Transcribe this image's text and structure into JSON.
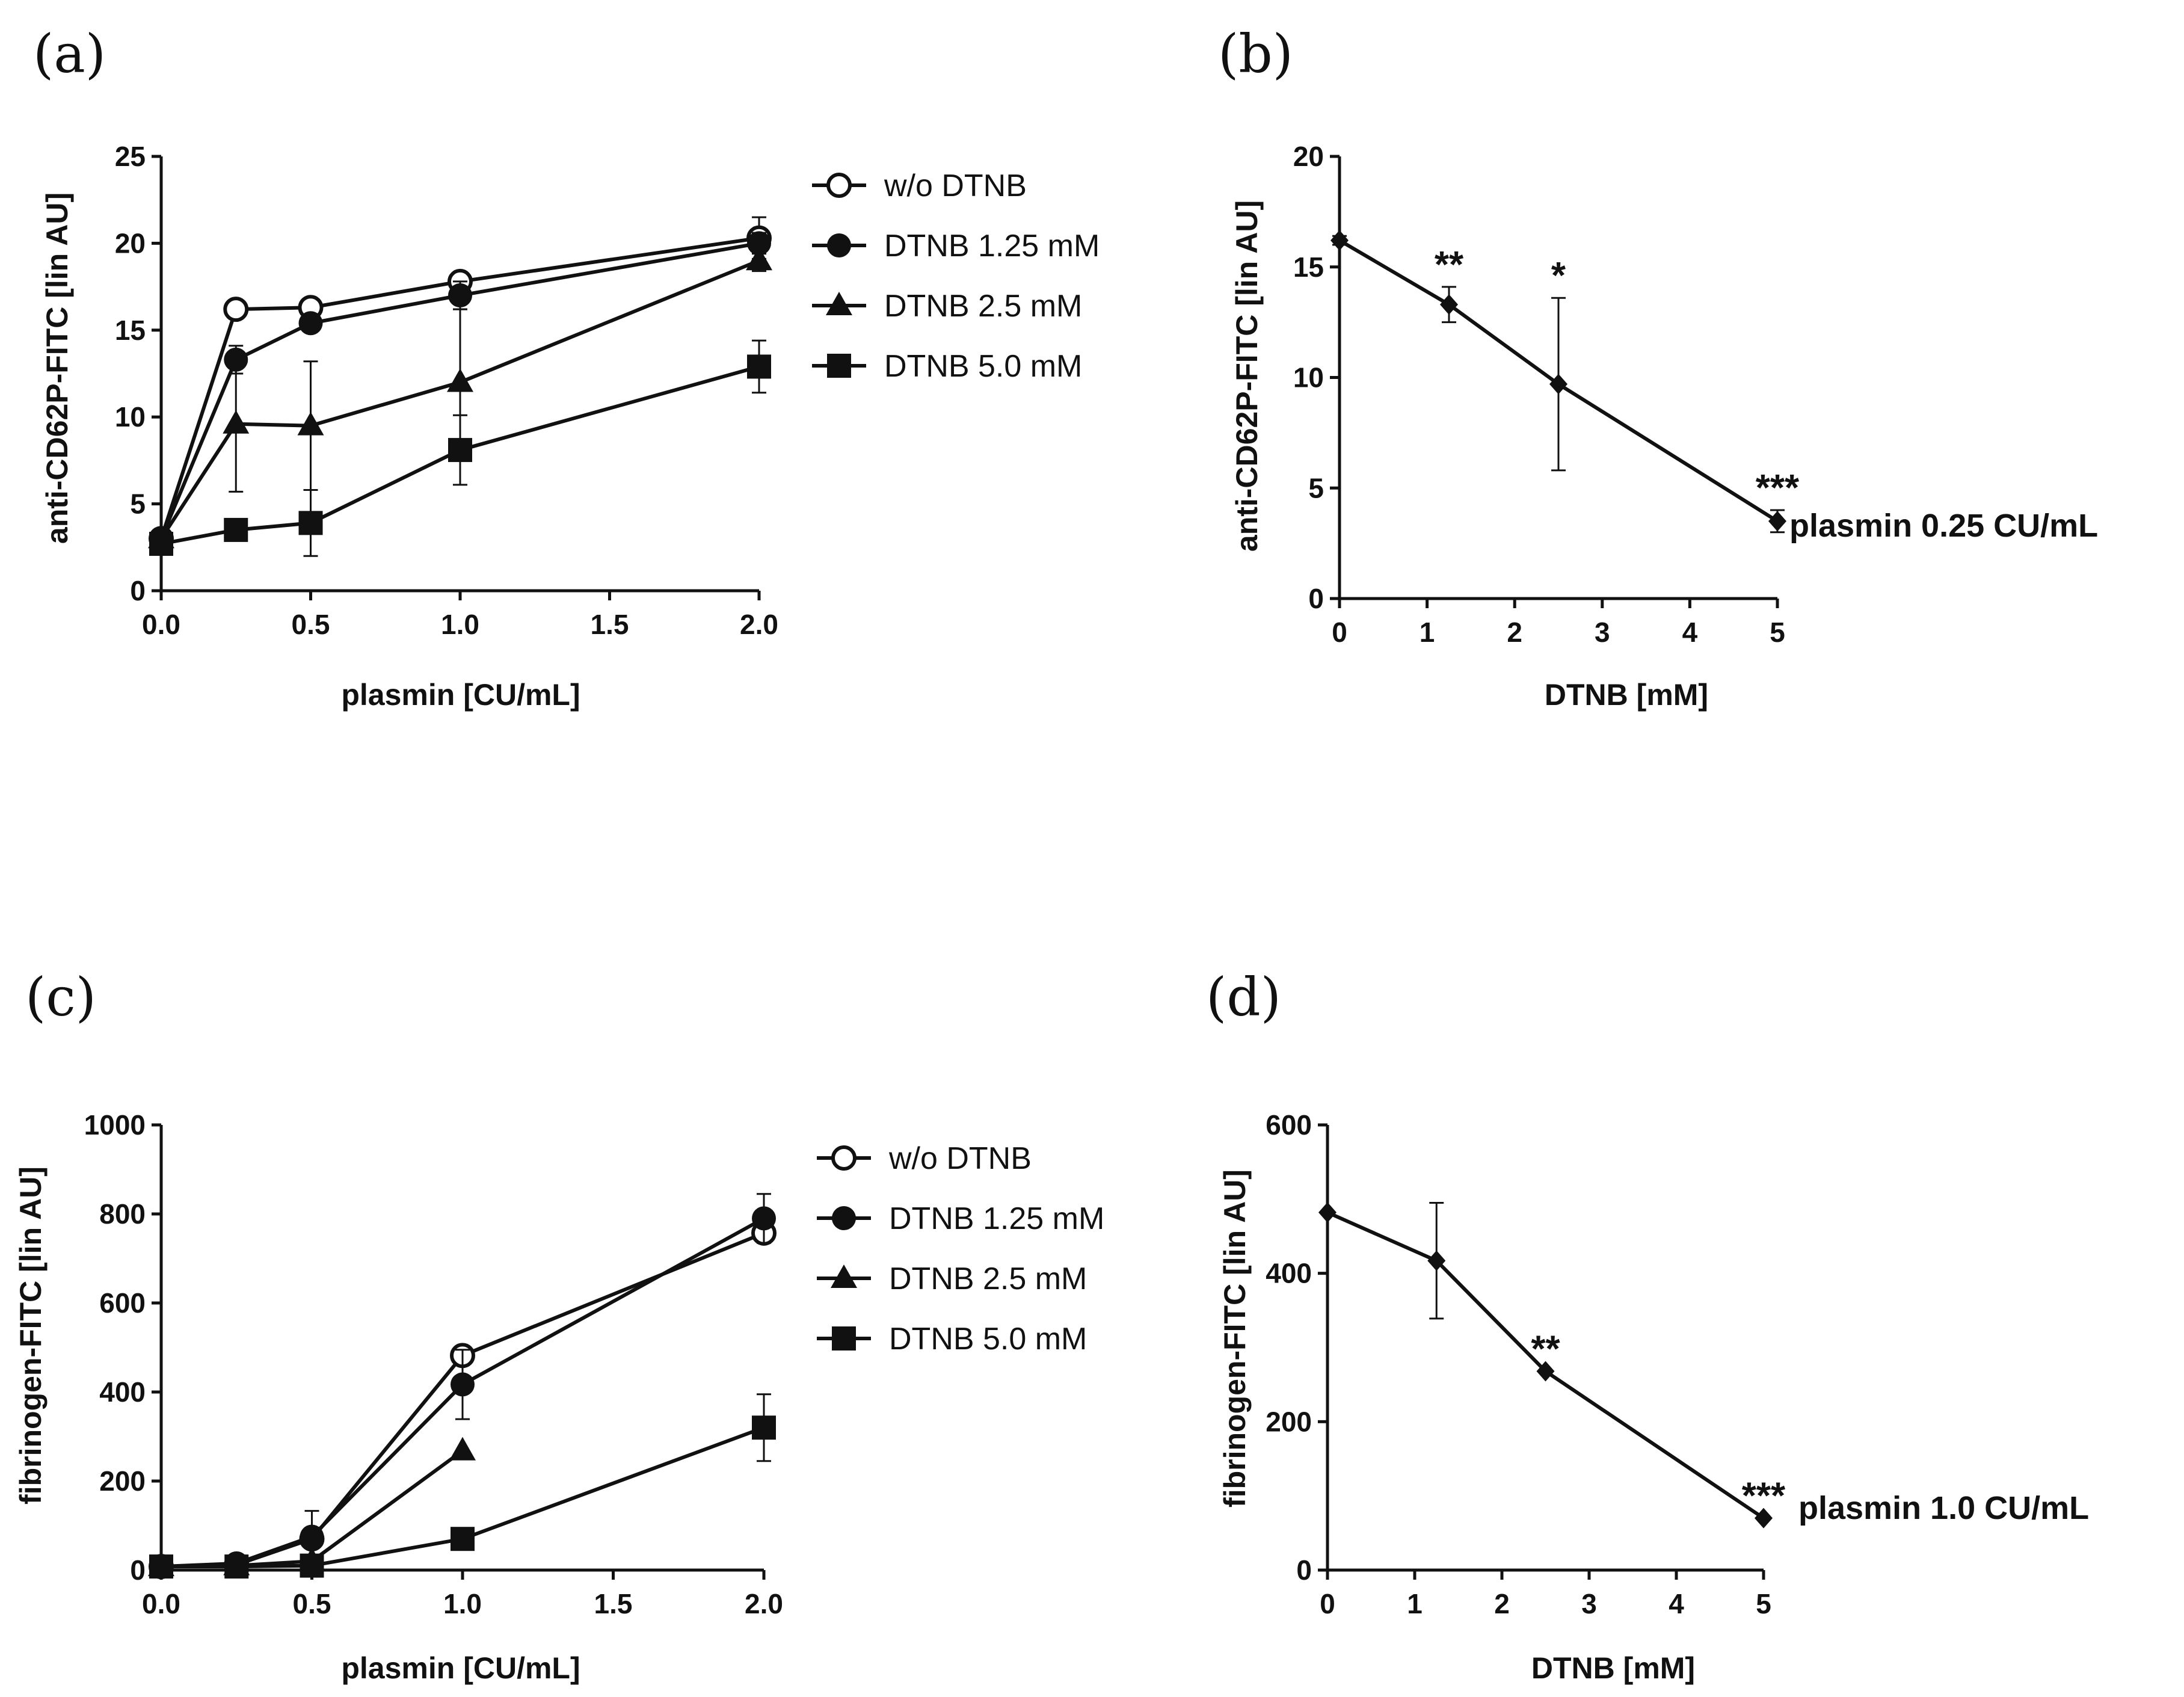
{
  "chart_data": [
    {
      "panel": "(a)",
      "type": "line",
      "xlabel": "plasmin [CU/mL]",
      "ylabel": "anti-CD62P-FITC [lin AU]",
      "xlim": [
        0,
        2.0
      ],
      "ylim": [
        0,
        25
      ],
      "xticks": [
        "0.0",
        "0.5",
        "1.0",
        "1.5",
        "2.0"
      ],
      "yticks": [
        "0",
        "5",
        "10",
        "15",
        "20",
        "25"
      ],
      "x": [
        0,
        0.25,
        0.5,
        1.0,
        2.0
      ],
      "legend_position": "right",
      "series": [
        {
          "name": "w/o DTNB",
          "marker": "open-circle",
          "values": [
            3.0,
            16.2,
            16.3,
            17.8,
            20.3
          ],
          "errors": [
            0.3,
            0.3,
            0.5,
            0.4,
            1.2
          ]
        },
        {
          "name": "DTNB 1.25 mM",
          "marker": "circle",
          "values": [
            3.0,
            13.3,
            15.4,
            17.0,
            20.0
          ],
          "errors": [
            0.3,
            0.8,
            0.5,
            0.8,
            0.6
          ]
        },
        {
          "name": "DTNB 2.5 mM",
          "marker": "triangle",
          "values": [
            3.0,
            9.6,
            9.5,
            12.0,
            19.0
          ],
          "errors": [
            0.3,
            3.9,
            3.7,
            4.2,
            0.6
          ]
        },
        {
          "name": "DTNB 5.0 mM",
          "marker": "square",
          "values": [
            2.7,
            3.5,
            3.9,
            8.1,
            12.9
          ],
          "errors": [
            0.3,
            0.3,
            1.9,
            2.0,
            1.5
          ]
        }
      ]
    },
    {
      "panel": "(b)",
      "type": "line",
      "xlabel": "DTNB [mM]",
      "ylabel": "anti-CD62P-FITC [lin AU]",
      "xlim": [
        0,
        5
      ],
      "ylim": [
        0,
        20
      ],
      "xticks": [
        "0",
        "1",
        "2",
        "3",
        "4",
        "5"
      ],
      "yticks": [
        "0",
        "5",
        "10",
        "15",
        "20"
      ],
      "series": [
        {
          "name": "plasmin 0.25 CU/mL",
          "marker": "diamond",
          "x": [
            0,
            1.25,
            2.5,
            5.0
          ],
          "values": [
            16.2,
            13.3,
            9.7,
            3.5
          ],
          "errors": [
            0.2,
            0.8,
            3.9,
            0.5
          ]
        }
      ],
      "significance": [
        "",
        "**",
        "*",
        "***"
      ],
      "annotation": "plasmin 0.25 CU/mL"
    },
    {
      "panel": "(c)",
      "type": "line",
      "xlabel": "plasmin [CU/mL]",
      "ylabel": "fibrinogen-FITC [lin AU]",
      "xlim": [
        0,
        2.0
      ],
      "ylim": [
        0,
        1000
      ],
      "xticks": [
        "0.0",
        "0.5",
        "1.0",
        "1.5",
        "2.0"
      ],
      "yticks": [
        "0",
        "200",
        "400",
        "600",
        "800",
        "1000"
      ],
      "x": [
        0,
        0.25,
        0.5,
        1.0,
        2.0
      ],
      "legend_position": "right",
      "series": [
        {
          "name": "w/o DTNB",
          "marker": "open-circle",
          "values": [
            8,
            12,
            70,
            482,
            757
          ],
          "errors": [
            0,
            0,
            0,
            0,
            0
          ]
        },
        {
          "name": "DTNB 1.25 mM",
          "marker": "circle",
          "values": [
            8,
            15,
            75,
            417,
            790
          ],
          "errors": [
            0,
            5,
            58,
            78,
            55
          ]
        },
        {
          "name": "DTNB 2.5 mM",
          "marker": "triangle",
          "values": [
            8,
            10,
            20,
            268,
            null
          ],
          "errors": [
            0,
            0,
            0,
            0,
            0
          ]
        },
        {
          "name": "DTNB 5.0 mM",
          "marker": "square",
          "values": [
            8,
            8,
            10,
            70,
            320
          ],
          "errors": [
            0,
            0,
            0,
            0,
            75
          ]
        }
      ]
    },
    {
      "panel": "(d)",
      "type": "line",
      "xlabel": "DTNB [mM]",
      "ylabel": "fibrinogen-FITC [lin AU]",
      "xlim": [
        0,
        5
      ],
      "ylim": [
        0,
        600
      ],
      "xticks": [
        "0",
        "1",
        "2",
        "3",
        "4",
        "5"
      ],
      "yticks": [
        "0",
        "200",
        "400",
        "600"
      ],
      "series": [
        {
          "name": "plasmin 1.0 CU/mL",
          "marker": "diamond",
          "x": [
            0,
            1.25,
            2.5,
            5.0
          ],
          "values": [
            482,
            417,
            268,
            70
          ],
          "errors": [
            0,
            78,
            0,
            0
          ]
        }
      ],
      "significance": [
        "",
        "",
        "**",
        "***"
      ],
      "annotation": "plasmin 1.0 CU/mL"
    }
  ]
}
